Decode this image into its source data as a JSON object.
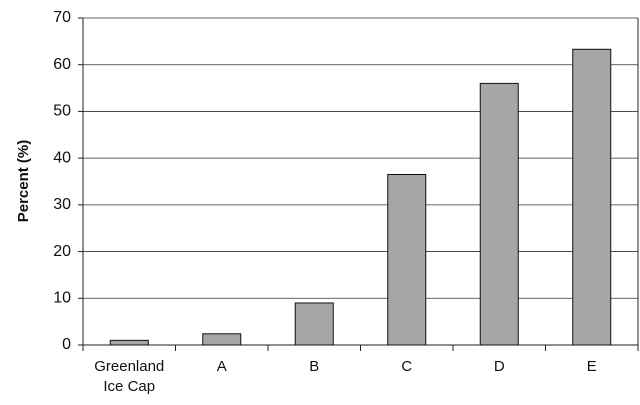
{
  "chart_data": {
    "type": "bar",
    "y_label": "Percent (%)",
    "categories": [
      "Greenland Ice Cap",
      "A",
      "B",
      "C",
      "D",
      "E"
    ],
    "values": [
      1,
      2.4,
      9,
      36.5,
      56,
      63.3
    ],
    "color": "#a6a6a6",
    "ylim": [
      0,
      70
    ],
    "yticks": [
      0,
      10,
      20,
      30,
      40,
      50,
      60,
      70
    ],
    "grid": true
  }
}
